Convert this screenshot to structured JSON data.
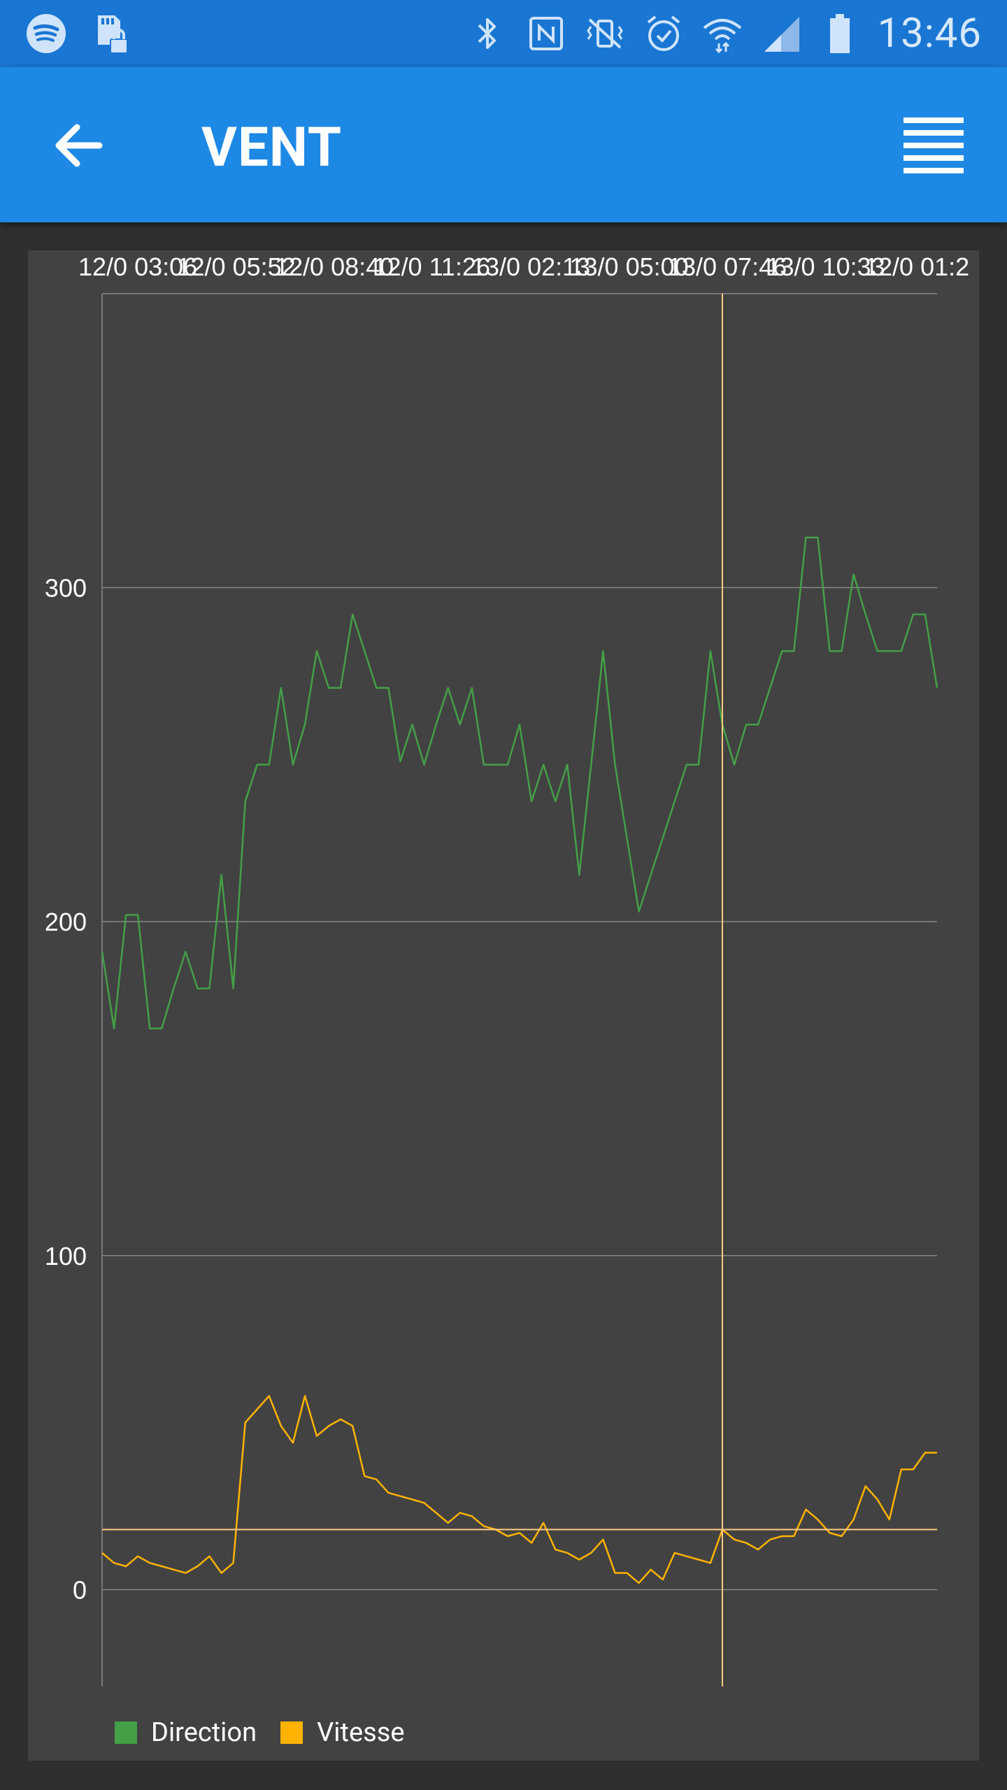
{
  "status_bar": {
    "time": "13:46",
    "left_icons": [
      "spotify-icon",
      "sd-card-lock-icon"
    ],
    "right_icons": [
      "bluetooth-icon",
      "nfc-icon",
      "vibrate-mute-icon",
      "alarm-icon",
      "wifi-icon",
      "signal-icon",
      "battery-icon"
    ]
  },
  "app_bar": {
    "title": "VENT",
    "back_icon": "arrow-left-icon",
    "menu_icon": "menu-lines-icon"
  },
  "colors": {
    "status_bar": "#1976d2",
    "app_bar": "#1e88e5",
    "background": "#2f2f2f",
    "chart_background": "#424242",
    "direction": "#43a047",
    "vitesse": "#ffb300",
    "cursor": "#ffcc80",
    "grid": "#888888"
  },
  "chart_data": {
    "type": "line",
    "title": "",
    "xlabel": "",
    "ylabel": "",
    "ylim": [
      -29,
      388
    ],
    "yticks": [
      0,
      100,
      200,
      300
    ],
    "grid": true,
    "legend_position": "bottom-left",
    "x_tick_labels": [
      "12/0 03:06",
      "12/0 05:52",
      "12/0 08:40",
      "12/0 11:26",
      "13/0 02:13",
      "13/0 05:00",
      "13/0 07:46",
      "13/0 10:33",
      "12/0 01:2"
    ],
    "series": [
      {
        "name": "Direction",
        "color": "#43a047",
        "values": [
          191,
          168,
          202,
          202,
          168,
          168,
          180,
          191,
          180,
          180,
          214,
          180,
          236,
          247,
          247,
          270,
          247,
          259,
          281,
          270,
          270,
          292,
          281,
          270,
          270,
          248,
          259,
          247,
          259,
          270,
          259,
          270,
          247,
          247,
          247,
          259,
          236,
          247,
          236,
          247,
          214,
          247,
          281,
          247,
          225,
          203,
          214,
          225,
          236,
          247,
          247,
          281,
          259,
          247,
          259,
          259,
          270,
          281,
          281,
          315,
          315,
          281,
          281,
          304,
          292,
          281,
          281,
          281,
          292,
          292,
          270
        ]
      },
      {
        "name": "Vitesse",
        "color": "#ffb300",
        "values": [
          11,
          8,
          7,
          10,
          8,
          7,
          6,
          5,
          7,
          10,
          5,
          8,
          50,
          54,
          58,
          49,
          44,
          58,
          46,
          49,
          51,
          49,
          34,
          33,
          29,
          28,
          27,
          26,
          23,
          20,
          23,
          22,
          19,
          18,
          16,
          17,
          14,
          20,
          12,
          11,
          9,
          11,
          15,
          5,
          5,
          2,
          6,
          3,
          11,
          10,
          9,
          8,
          18,
          15,
          14,
          12,
          15,
          16,
          16,
          24,
          21,
          17,
          16,
          21,
          31,
          27,
          21,
          36,
          36,
          41,
          41
        ]
      }
    ],
    "cursor": {
      "index": 52,
      "value": 18
    }
  }
}
